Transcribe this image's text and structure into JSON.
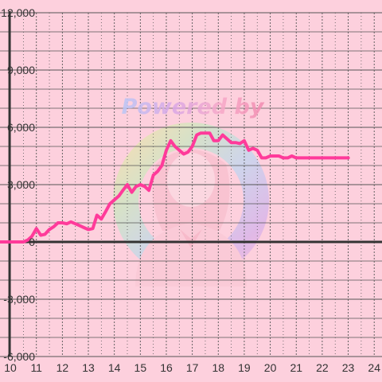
{
  "watermark": {
    "text": "Powered by",
    "gradient": [
      "#b9c8f7",
      "#d9a8e8",
      "#f7a8c8",
      "#f28ab0"
    ]
  },
  "chart_data": {
    "type": "line",
    "title": "",
    "xlabel": "",
    "ylabel": "",
    "xlim": [
      9.6,
      24.3
    ],
    "ylim": [
      -6000,
      12000
    ],
    "xticks": [
      10,
      11,
      12,
      13,
      14,
      15,
      16,
      17,
      18,
      19,
      20,
      21,
      22,
      23,
      24
    ],
    "yticks": [
      -6000,
      -3000,
      0,
      3000,
      6000,
      9000,
      12000
    ],
    "ytick_labels": [
      "-6,000",
      "-3,000",
      "0",
      "3,000",
      "6,000",
      "9,000",
      "12,000"
    ],
    "x_minor_step": 0.5,
    "y_minor_step": 1000,
    "grid": true,
    "colors": {
      "background": "#fdd0dd",
      "line": "#ff3a9a",
      "grid_major": "#555555",
      "grid_minor": "#555555",
      "axis": "#333333",
      "tick_text": "#333333"
    },
    "series": [
      {
        "name": "",
        "x": [
          9.6,
          10.5,
          10.67,
          10.83,
          11.0,
          11.17,
          11.33,
          11.5,
          11.67,
          11.83,
          12.0,
          12.17,
          12.33,
          12.5,
          12.67,
          12.83,
          13.0,
          13.17,
          13.33,
          13.5,
          13.67,
          13.83,
          14.0,
          14.17,
          14.33,
          14.5,
          14.67,
          14.83,
          15.0,
          15.17,
          15.33,
          15.5,
          15.67,
          15.83,
          16.0,
          16.17,
          16.33,
          16.5,
          16.67,
          16.83,
          17.0,
          17.17,
          17.33,
          17.5,
          17.67,
          17.83,
          18.0,
          18.17,
          18.33,
          18.5,
          18.67,
          18.83,
          19.0,
          19.17,
          19.33,
          19.5,
          19.67,
          19.83,
          20.0,
          20.17,
          20.33,
          20.5,
          20.67,
          20.83,
          21.0,
          21.17,
          21.33,
          21.5,
          21.67,
          21.83,
          22.0,
          22.17,
          22.33,
          22.5,
          22.67,
          22.83,
          23.0
        ],
        "y": [
          0,
          0,
          100,
          300,
          700,
          350,
          400,
          650,
          800,
          1000,
          1000,
          950,
          1050,
          950,
          850,
          750,
          650,
          700,
          1400,
          1200,
          1600,
          2000,
          2200,
          2400,
          2700,
          3000,
          2600,
          2900,
          3000,
          2900,
          2700,
          3500,
          3700,
          4000,
          4800,
          5300,
          5000,
          4800,
          4600,
          4700,
          5000,
          5600,
          5700,
          5700,
          5700,
          5300,
          5300,
          5600,
          5400,
          5200,
          5200,
          5150,
          5300,
          4800,
          4900,
          4800,
          4400,
          4400,
          4500,
          4500,
          4500,
          4400,
          4400,
          4500,
          4400,
          4400,
          4400,
          4400,
          4400,
          4400,
          4400,
          4400,
          4400,
          4400,
          4400,
          4400,
          4400
        ]
      }
    ]
  }
}
